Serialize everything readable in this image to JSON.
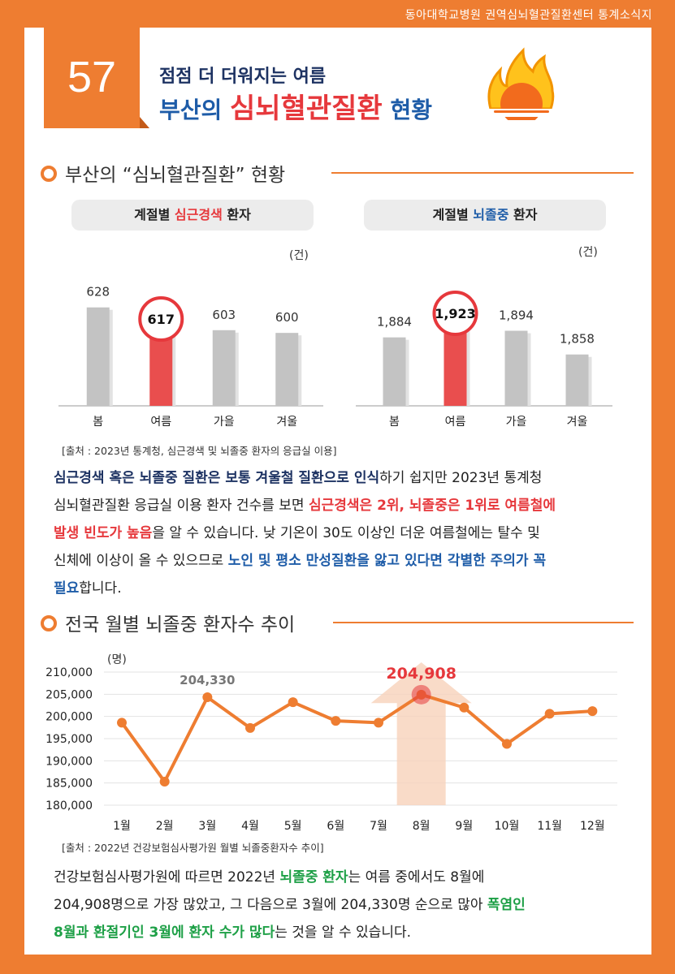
{
  "header": {
    "org_line": "동아대학교병원 권역심뇌혈관질환센터 통계소식지",
    "issue_number": "57",
    "title_line1": "점점 더 더워지는 여름",
    "title_line2_pre": "부산의 ",
    "title_line2_highlight": "심뇌혈관질환",
    "title_line2_post": " 현황"
  },
  "section1": {
    "title": "부산의 “심뇌혈관질환” 현황"
  },
  "chart_data": [
    {
      "type": "bar",
      "pill": {
        "pre": "계절별 ",
        "highlight": "심근경색",
        "post": " 환자"
      },
      "unit": "(건)",
      "categories": [
        "봄",
        "여름",
        "가을",
        "겨울"
      ],
      "values": [
        628,
        617,
        603,
        600
      ],
      "labels": [
        "628",
        "617",
        "603",
        "600"
      ],
      "highlight_index": 1,
      "colors": {
        "bar": "#C3C3C3",
        "highlight": "#E94E4E"
      }
    },
    {
      "type": "bar",
      "pill": {
        "pre": "계절별 ",
        "highlight": "뇌졸중",
        "post": " 환자"
      },
      "unit": "(건)",
      "categories": [
        "봄",
        "여름",
        "가을",
        "겨울"
      ],
      "values": [
        1884,
        1923,
        1894,
        1858
      ],
      "labels": [
        "1,884",
        "1,923",
        "1,894",
        "1,858"
      ],
      "highlight_index": 1,
      "colors": {
        "bar": "#C3C3C3",
        "highlight": "#E94E4E"
      }
    },
    {
      "type": "line",
      "unit": "(명)",
      "categories": [
        "1월",
        "2월",
        "3월",
        "4월",
        "5월",
        "6월",
        "7월",
        "8월",
        "9월",
        "10월",
        "11월",
        "12월"
      ],
      "values": [
        198600,
        185300,
        204330,
        197400,
        203200,
        199000,
        198600,
        204908,
        202000,
        193800,
        200600,
        201200
      ],
      "ylim": [
        180000,
        210000
      ],
      "yticks": [
        "210,000",
        "205,000",
        "200,000",
        "195,000",
        "190,000",
        "185,000",
        "180,000"
      ],
      "annotations": [
        {
          "index": 2,
          "label": "204,330"
        },
        {
          "index": 7,
          "label": "204,908"
        }
      ],
      "grid": true,
      "colors": {
        "line": "#EE7D31",
        "highlight": "#E6383C",
        "arrow": "#F7D2BA"
      }
    }
  ],
  "source1": "[출처 : 2023년 통계청, 심근경색 및 뇌졸중 환자의 응급실 이용]",
  "para1": {
    "l1_b": "심근경색 혹은 뇌졸중 질환은 보통 겨울철 질환으로 인식",
    "l1_n": "하기 쉽지만 2023년 통계청",
    "l2_n": "심뇌혈관질환 응급실 이용 환자 건수를 보면 ",
    "l2_b": "심근경색은 2위, 뇌졸중은 1위로 여름철에",
    "l3_b": "발생 빈도가 높음",
    "l3_n": "을 알 수 있습니다.  낮 기온이 30도 이상인 더운 여름철에는 탈수 및",
    "l4_n": "신체에 이상이 올 수 있으므로 ",
    "l4_b": "노인 및 평소 만성질환을 앓고 있다면 각별한 주의가 꼭",
    "l5_b": "필요",
    "l5_n": "합니다."
  },
  "section2": {
    "title": "전국 월별 뇌졸중 환자수 추이"
  },
  "source2": "[출처 : 2022년 건강보험심사평가원 월별 뇌졸중환자수 추이]",
  "para2": {
    "l1_n": "건강보험심사평가원에 따르면 2022년 ",
    "l1_b": "뇌졸중 환자",
    "l1_n2": "는 여름 중에서도 8월에",
    "l2_n": "204,908명으로 가장 많았고, 그 다음으로 3월에 204,330명 순으로 많아 ",
    "l2_b": "폭염인",
    "l3_b": "8월과 환절기인 3월에 환자 수가 많다",
    "l3_n": "는 것을 알 수 있습니다."
  }
}
